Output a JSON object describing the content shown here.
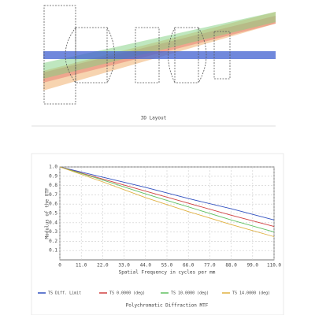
{
  "layout": {
    "title": "3D Layout"
  },
  "chart_data": {
    "type": "line",
    "title": "Polychromatic Diffraction MTF",
    "x_label": "Spatial Frequency in cycles per mm",
    "y_label": "Modulus of the OTF",
    "x": [
      0,
      22,
      44,
      66,
      88,
      110
    ],
    "series": [
      {
        "name": "TS Diff. Limit",
        "color": "#3050c0",
        "values": [
          1,
          0.89,
          0.78,
          0.66,
          0.55,
          0.43
        ]
      },
      {
        "name": "TS 0.0000 (deg)",
        "color": "#d04040",
        "values": [
          1,
          0.87,
          0.74,
          0.61,
          0.48,
          0.36
        ]
      },
      {
        "name": "TS 10.0000 (deg)",
        "color": "#60c060",
        "values": [
          1,
          0.86,
          0.71,
          0.57,
          0.43,
          0.3
        ]
      },
      {
        "name": "TS 14.0000 (deg)",
        "color": "#e0b040",
        "values": [
          1,
          0.84,
          0.67,
          0.52,
          0.38,
          0.25
        ]
      }
    ],
    "xlim": [
      0,
      110
    ],
    "ylim": [
      0,
      1
    ],
    "xticks": [
      0,
      {
        "value": 11,
        "label": "11.0"
      },
      {
        "value": 22,
        "label": "22.0"
      },
      {
        "value": 33,
        "label": "33.0"
      },
      {
        "value": 44,
        "label": "44.0"
      },
      {
        "value": 55,
        "label": "55.0"
      },
      {
        "value": 66,
        "label": "66.0"
      },
      {
        "value": 77,
        "label": "77.0"
      },
      {
        "value": 88,
        "label": "88.0"
      },
      {
        "value": 99,
        "label": "99.0"
      },
      {
        "value": 110,
        "label": "110.0"
      }
    ],
    "yticks": [
      0.1,
      0.2,
      0.3,
      0.4,
      0.5,
      0.6,
      0.7,
      0.8,
      0.9,
      {
        "value": 1,
        "label": "1.0"
      }
    ],
    "grid": true
  }
}
